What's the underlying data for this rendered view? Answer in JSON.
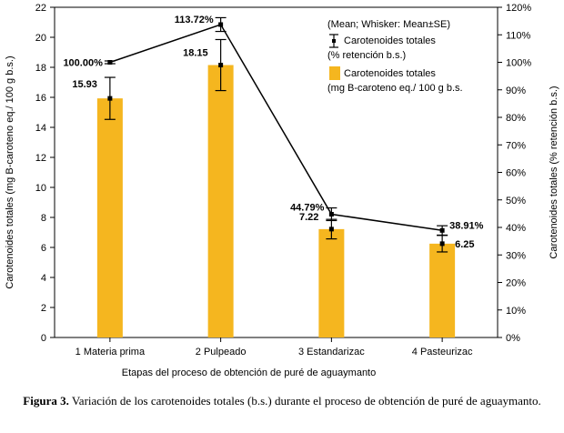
{
  "chart_data": {
    "type": "bar",
    "categories": [
      "1 Materia prima",
      "2 Pulpeado",
      "3 Estandarizac",
      "4 Pasteurizac"
    ],
    "xlabel": "Etapas del proceso de obtención de puré de aguaymanto",
    "ylabel": "Carotenoides totales (mg B-caroteno eq./ 100 g b.s.)",
    "y2label": "Carotenoides totales (% retención b.s.)",
    "ylim": [
      0,
      22
    ],
    "y_ticks": [
      0,
      2,
      4,
      6,
      8,
      10,
      12,
      14,
      16,
      18,
      20,
      22
    ],
    "y2lim": [
      0,
      120
    ],
    "y2_ticks": [
      "0%",
      "10%",
      "20%",
      "30%",
      "40%",
      "50%",
      "60%",
      "70%",
      "80%",
      "90%",
      "100%",
      "110%",
      "120%"
    ],
    "grid": false,
    "bar_color": "#f5b61f",
    "series": [
      {
        "name": "Carotenoides totales (mg B-caroteno eq./ 100 g b.s.",
        "axis": "left",
        "kind": "bar",
        "values": [
          15.93,
          18.15,
          7.22,
          6.25
        ],
        "labels": [
          "15.93",
          "18.15",
          "7.22",
          "6.25"
        ],
        "se": [
          1.4,
          1.7,
          0.65,
          0.55
        ]
      },
      {
        "name": "Carotenoides totales (% retención b.s.)",
        "axis": "right",
        "kind": "line",
        "values": [
          100.0,
          113.72,
          44.79,
          38.91
        ],
        "labels": [
          "100.00%",
          "113.72%",
          "44.79%",
          "38.91%"
        ],
        "se": [
          0.5,
          2.5,
          2.3,
          1.7
        ]
      }
    ],
    "legend": {
      "header": "(Mean; Whisker: Mean±SE)",
      "line_entry": [
        "Carotenoides totales",
        "(% retención b.s.)"
      ],
      "bar_entry": [
        "Carotenoides totales",
        "(mg B-caroteno eq./ 100 g b.s."
      ]
    }
  },
  "caption": {
    "label": "Figura 3.",
    "text": "Variación de los carotenoides totales (b.s.) durante el proceso de obtención de puré de aguaymanto."
  }
}
